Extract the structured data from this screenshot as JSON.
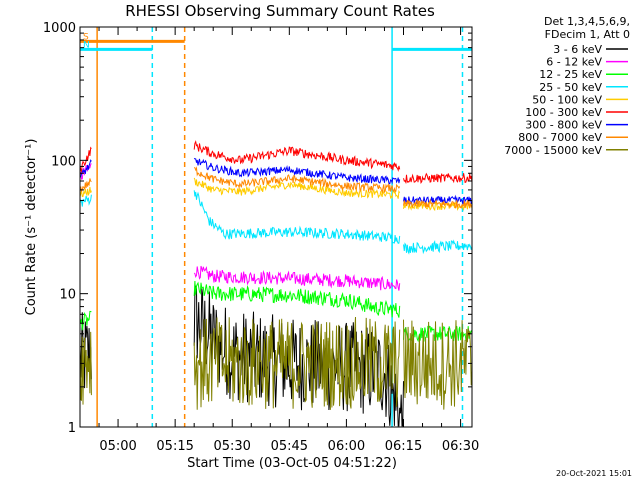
{
  "chart_data": {
    "type": "line",
    "title": "RHESSI Observing Summary Count Rates",
    "xlabel": "Start Time (03-Oct-05 04:51:22)",
    "ylabel": "Count Rate (s⁻¹ detector⁻¹)",
    "yscale": "log",
    "ylim": [
      1,
      1000
    ],
    "xlim_minutes": [
      290,
      393
    ],
    "x_tick_minutes": [
      300,
      315,
      330,
      345,
      360,
      375,
      390
    ],
    "x_tick_labels": [
      "05:00",
      "05:15",
      "05:30",
      "05:45",
      "06:00",
      "06:15",
      "06:30"
    ],
    "y_tick_values": [
      1,
      10,
      100,
      1000
    ],
    "y_tick_labels": [
      "1",
      "10",
      "100",
      "1000"
    ],
    "info_lines": [
      "Det 1,3,4,5,6,9,",
      "FDecim 1, Att 0"
    ],
    "legend_position": "right-outside",
    "flag_markers": [
      {
        "label": "S",
        "color": "#ff8800",
        "start": 290,
        "end": 317.5,
        "level": 780
      },
      {
        "label": "N",
        "color": "#00e6ff",
        "start": 290,
        "end": 309,
        "level": 680
      },
      {
        "label": "",
        "color": "#00e6ff",
        "start": 372,
        "end": 393,
        "level": 680
      }
    ],
    "vertical_lines": [
      {
        "x": 294.5,
        "color": "#ff8800",
        "style": "solid"
      },
      {
        "x": 317.5,
        "color": "#ff8800",
        "style": "dashed"
      },
      {
        "x": 309,
        "color": "#00e6ff",
        "style": "dashed"
      },
      {
        "x": 372,
        "color": "#00e6ff",
        "style": "solid"
      },
      {
        "x": 390.5,
        "color": "#00e6ff",
        "style": "dashed"
      }
    ],
    "series": [
      {
        "name": "3 - 6 keV",
        "color": "#000000",
        "noise": 0.35,
        "pre": [
          [
            290,
            3.2
          ],
          [
            293,
            3.5
          ]
        ],
        "main": [
          [
            320,
            6.5
          ],
          [
            325,
            4.5
          ],
          [
            330,
            3.5
          ],
          [
            345,
            3.0
          ],
          [
            360,
            2.8
          ],
          [
            370,
            2.6
          ],
          [
            375,
            1.0
          ]
        ],
        "tail": []
      },
      {
        "name": "6 - 12 keV",
        "color": "#ff00ff",
        "noise": 0.05,
        "pre": [
          [
            290,
            75
          ],
          [
            293,
            90
          ]
        ],
        "main": [
          [
            320,
            15
          ],
          [
            325,
            13.5
          ],
          [
            345,
            13
          ],
          [
            360,
            12.5
          ],
          [
            374,
            11.5
          ]
        ],
        "tail": []
      },
      {
        "name": "12 - 25 keV",
        "color": "#00ff00",
        "noise": 0.06,
        "pre": [
          [
            290,
            6.0
          ],
          [
            293,
            6.5
          ]
        ],
        "main": [
          [
            320,
            11
          ],
          [
            325,
            10
          ],
          [
            345,
            9.8
          ],
          [
            360,
            9
          ],
          [
            368,
            7.8
          ],
          [
            374,
            7.5
          ]
        ],
        "tail": [
          [
            375,
            5.0
          ],
          [
            393,
            5.0
          ]
        ]
      },
      {
        "name": "25 - 50 keV",
        "color": "#00e6ff",
        "noise": 0.04,
        "pre": [
          [
            290,
            48
          ],
          [
            293,
            52
          ]
        ],
        "main": [
          [
            320,
            60
          ],
          [
            324,
            35
          ],
          [
            328,
            28
          ],
          [
            345,
            29
          ],
          [
            360,
            28
          ],
          [
            374,
            26
          ]
        ],
        "tail": [
          [
            375,
            22
          ],
          [
            393,
            23
          ]
        ]
      },
      {
        "name": "50 - 100 keV",
        "color": "#ffcc00",
        "noise": 0.03,
        "pre": [
          [
            290,
            55
          ],
          [
            293,
            60
          ]
        ],
        "main": [
          [
            320,
            70
          ],
          [
            325,
            60
          ],
          [
            332,
            58
          ],
          [
            345,
            66
          ],
          [
            360,
            57
          ],
          [
            374,
            55
          ]
        ],
        "tail": [
          [
            375,
            46
          ],
          [
            393,
            45
          ]
        ]
      },
      {
        "name": "100 - 300 keV",
        "color": "#ff0000",
        "noise": 0.035,
        "pre": [
          [
            290,
            85
          ],
          [
            293,
            120
          ]
        ],
        "main": [
          [
            320,
            130
          ],
          [
            325,
            112
          ],
          [
            332,
            100
          ],
          [
            345,
            118
          ],
          [
            360,
            100
          ],
          [
            374,
            90
          ]
        ],
        "tail": [
          [
            375,
            73
          ],
          [
            393,
            74
          ]
        ]
      },
      {
        "name": "300 - 800 keV",
        "color": "#0000ff",
        "noise": 0.03,
        "pre": [
          [
            290,
            75
          ],
          [
            293,
            95
          ]
        ],
        "main": [
          [
            320,
            100
          ],
          [
            325,
            88
          ],
          [
            332,
            80
          ],
          [
            345,
            85
          ],
          [
            360,
            74
          ],
          [
            374,
            70
          ]
        ],
        "tail": [
          [
            375,
            50
          ],
          [
            393,
            50
          ]
        ]
      },
      {
        "name": "800 - 7000 keV",
        "color": "#ff8800",
        "noise": 0.03,
        "pre": [
          [
            290,
            60
          ],
          [
            293,
            70
          ]
        ],
        "main": [
          [
            320,
            85
          ],
          [
            325,
            72
          ],
          [
            332,
            66
          ],
          [
            345,
            73
          ],
          [
            360,
            64
          ],
          [
            374,
            61
          ]
        ],
        "tail": [
          [
            375,
            47
          ],
          [
            393,
            47
          ]
        ]
      },
      {
        "name": "7000 - 15000 keV",
        "color": "#808000",
        "noise": 0.35,
        "pre": [
          [
            290,
            3.2
          ],
          [
            293,
            3.5
          ]
        ],
        "main": [
          [
            320,
            3.0
          ],
          [
            345,
            3.0
          ],
          [
            360,
            3.0
          ],
          [
            374,
            3.0
          ]
        ],
        "tail": [
          [
            375,
            3.0
          ],
          [
            393,
            3.0
          ]
        ]
      }
    ]
  },
  "footer": {
    "date_stamp": "20-Oct-2021 15:01"
  }
}
